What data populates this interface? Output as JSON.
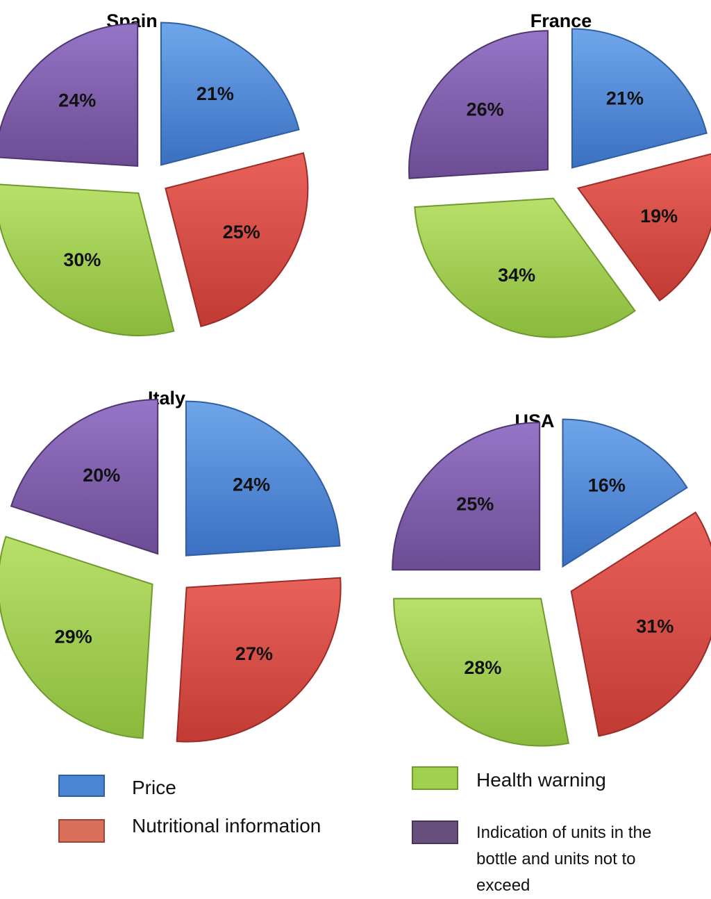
{
  "chart_data": [
    {
      "type": "pie",
      "title": "Spain",
      "categories": [
        "Price",
        "Nutritional information",
        "Health warning",
        "Indication of units in the bottle and units not  to exceed"
      ],
      "values": [
        21,
        25,
        30,
        24
      ],
      "labels": [
        "21%",
        "25%",
        "30%",
        "24%"
      ]
    },
    {
      "type": "pie",
      "title": "France",
      "categories": [
        "Price",
        "Nutritional information",
        "Health warning",
        "Indication of units in the bottle and units not  to exceed"
      ],
      "values": [
        21,
        19,
        34,
        26
      ],
      "labels": [
        "21%",
        "19%",
        "34%",
        "26%"
      ]
    },
    {
      "type": "pie",
      "title": "Italy",
      "categories": [
        "Price",
        "Nutritional information",
        "Health warning",
        "Indication of units in the bottle and units not  to exceed"
      ],
      "values": [
        24,
        27,
        29,
        20
      ],
      "labels": [
        "24%",
        "27%",
        "29%",
        "20%"
      ]
    },
    {
      "type": "pie",
      "title": "USA",
      "categories": [
        "Price",
        "Nutritional information",
        "Health warning",
        "Indication of units in the bottle and units not  to exceed"
      ],
      "values": [
        16,
        31,
        28,
        25
      ],
      "labels": [
        "16%",
        "31%",
        "28%",
        "25%"
      ]
    }
  ],
  "legend": {
    "items": [
      {
        "label": "Price",
        "color": "#4a86d4"
      },
      {
        "label": "Nutritional information",
        "color": "#d8705a"
      },
      {
        "label": "Health warning",
        "color": "#9fd04e"
      },
      {
        "label_lines": [
          "Indication of units in the",
          "bottle and units not  to",
          "exceed"
        ],
        "color": "#674f7e"
      }
    ]
  },
  "colors": {
    "price": "#4a86d4",
    "nutritional": "#d94a43",
    "health": "#9ccb4a",
    "indication": "#7d5aa6"
  }
}
